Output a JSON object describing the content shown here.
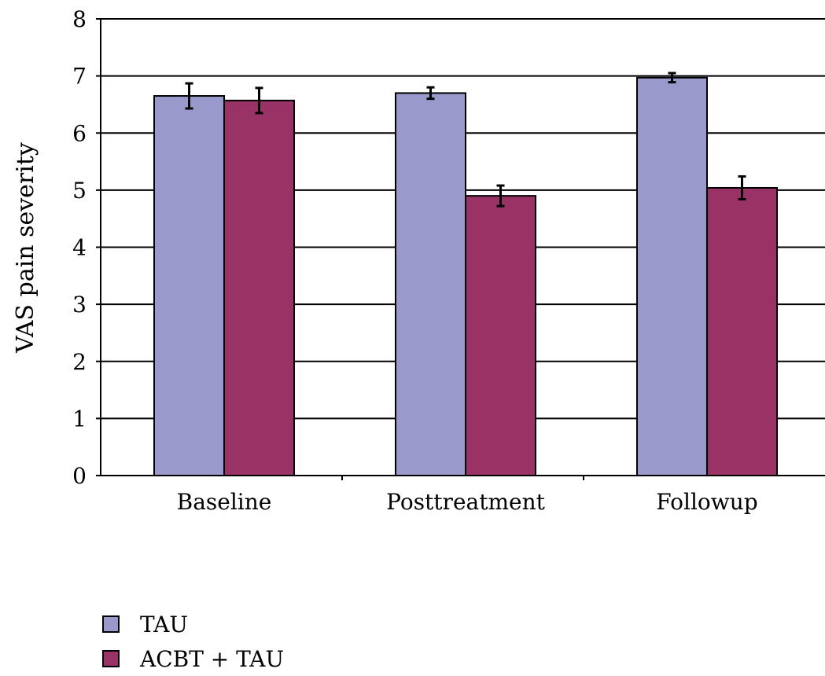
{
  "chart_data": {
    "type": "bar",
    "categories": [
      "Baseline",
      "Posttreatment",
      "Followup"
    ],
    "series": [
      {
        "name": "TAU",
        "color": "#9999cc",
        "values": [
          6.65,
          6.7,
          6.97
        ],
        "error": [
          0.22,
          0.1,
          0.08
        ]
      },
      {
        "name": "ACBT + TAU",
        "color": "#993366",
        "values": [
          6.57,
          4.9,
          5.04
        ],
        "error": [
          0.22,
          0.18,
          0.2
        ]
      }
    ],
    "ylabel": "VAS pain severity",
    "xlabel": "",
    "ylim": [
      0,
      8
    ],
    "yticks": [
      "0",
      "1",
      "2",
      "3",
      "4",
      "5",
      "6",
      "7",
      "8"
    ],
    "grid": true,
    "legend_position": "bottom-left"
  }
}
